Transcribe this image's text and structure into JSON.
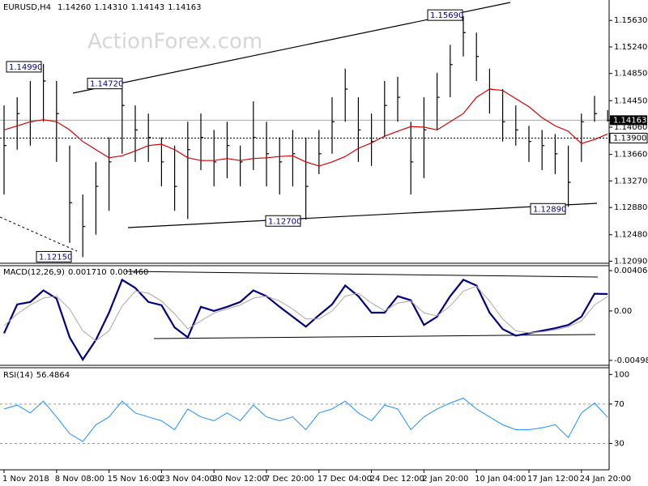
{
  "chart_data": [
    {
      "type": "ohlc",
      "title": "EURUSD,H4",
      "header": [
        "1.14260",
        "1.14310",
        "1.14143",
        "1.14163"
      ],
      "watermark": "ActionForex.com",
      "color": "#000000",
      "high": [
        1.1438,
        1.145,
        1.1474,
        1.1499,
        1.1474,
        1.1379,
        1.1307,
        1.1355,
        1.1391,
        1.1472,
        1.1438,
        1.1426,
        1.1391,
        1.1379,
        1.1414,
        1.1426,
        1.1402,
        1.1414,
        1.1379,
        1.1444,
        1.1414,
        1.1391,
        1.1402,
        1.1391,
        1.1402,
        1.145,
        1.1492,
        1.145,
        1.1426,
        1.1474,
        1.148,
        1.1414,
        1.145,
        1.1486,
        1.1527,
        1.1569,
        1.1545,
        1.1492,
        1.1462,
        1.1438,
        1.1408,
        1.1402,
        1.1396,
        1.1379,
        1.1426,
        1.1452,
        1.1431
      ],
      "low": [
        1.1307,
        1.1373,
        1.1379,
        1.1414,
        1.1355,
        1.1236,
        1.1215,
        1.1248,
        1.1283,
        1.1367,
        1.1355,
        1.1355,
        1.1319,
        1.1283,
        1.1271,
        1.1343,
        1.1319,
        1.1331,
        1.1319,
        1.1343,
        1.1319,
        1.1307,
        1.1319,
        1.127,
        1.1337,
        1.1367,
        1.1414,
        1.1355,
        1.1349,
        1.1391,
        1.1414,
        1.1307,
        1.1331,
        1.1402,
        1.145,
        1.151,
        1.1474,
        1.1426,
        1.1385,
        1.1379,
        1.1355,
        1.1343,
        1.1337,
        1.1289,
        1.1355,
        1.1414,
        1.14143
      ],
      "close": [
        1.1379,
        1.1426,
        1.1414,
        1.1474,
        1.1426,
        1.1295,
        1.126,
        1.1319,
        1.1355,
        1.1438,
        1.1402,
        1.1391,
        1.1355,
        1.1319,
        1.1373,
        1.1391,
        1.1355,
        1.1379,
        1.1355,
        1.1391,
        1.1367,
        1.1355,
        1.1367,
        1.1319,
        1.1367,
        1.1414,
        1.1462,
        1.1402,
        1.1385,
        1.1438,
        1.145,
        1.1355,
        1.1402,
        1.145,
        1.1498,
        1.1545,
        1.151,
        1.1462,
        1.1414,
        1.1402,
        1.1385,
        1.1379,
        1.1367,
        1.1325,
        1.1414,
        1.1426,
        1.14163
      ],
      "series": [
        {
          "color": "#d40000",
          "values": [
            1.1402,
            1.1408,
            1.1414,
            1.1417,
            1.1414,
            1.1402,
            1.1385,
            1.1373,
            1.1361,
            1.1364,
            1.1371,
            1.1379,
            1.1381,
            1.1373,
            1.1361,
            1.1357,
            1.1357,
            1.136,
            1.1357,
            1.136,
            1.1361,
            1.1363,
            1.1364,
            1.1355,
            1.1349,
            1.1355,
            1.1363,
            1.1375,
            1.1383,
            1.1393,
            1.14,
            1.1407,
            1.1406,
            1.1402,
            1.1414,
            1.1426,
            1.145,
            1.1462,
            1.146,
            1.1448,
            1.1436,
            1.142,
            1.1408,
            1.14,
            1.1382,
            1.1388,
            1.1396
          ]
        }
      ],
      "ylim": [
        1.1206,
        1.1593
      ],
      "yticks": [
        {
          "value": 1.1563,
          "label": "1.15630"
        },
        {
          "value": 1.1524,
          "label": "1.15240"
        },
        {
          "value": 1.1485,
          "label": "1.14850"
        },
        {
          "value": 1.1445,
          "label": "1.14450"
        },
        {
          "value": 1.1406,
          "label": "1.14060"
        },
        {
          "value": 1.1366,
          "label": "1.13660"
        },
        {
          "value": 1.1327,
          "label": "1.13270"
        },
        {
          "value": 1.1288,
          "label": "1.12880"
        },
        {
          "value": 1.1248,
          "label": "1.12480"
        },
        {
          "value": 1.1209,
          "label": "1.12090"
        }
      ],
      "annotations": [
        {
          "value": 1.1499,
          "label": "1.14990"
        },
        {
          "value": 1.1472,
          "label": "1.14720"
        },
        {
          "value": 1.1569,
          "label": "1.15690"
        },
        {
          "value": 1.1215,
          "label": "1.12150"
        },
        {
          "value": 1.127,
          "label": "1.12700"
        },
        {
          "value": 1.1289,
          "label": "1.12890"
        }
      ],
      "level": {
        "value": 1.139,
        "label": "1.13900"
      },
      "current_price": {
        "value": 1.14163,
        "label": "1.14163"
      }
    },
    {
      "type": "line",
      "title": "MACD(12,26,9)",
      "header": [
        "0.001710",
        "0.001460"
      ],
      "series": [
        {
          "color": "#000080",
          "values": [
            -0.00224,
            0.00066,
            0.00091,
            0.00208,
            0.00125,
            -0.00266,
            -0.0049,
            -0.00291,
            -0.00017,
            0.00315,
            0.00232,
            0.00091,
            0.00058,
            -0.00166,
            -0.00266,
            0.00042,
            0.0,
            0.00042,
            0.00091,
            0.00208,
            0.00149,
            0.00042,
            -0.00058,
            -0.00158,
            -0.00042,
            0.00066,
            0.00257,
            0.00149,
            -0.00017,
            -0.00017,
            0.00149,
            0.00108,
            -0.00141,
            -0.00058,
            0.00149,
            0.00315,
            0.00257,
            -0.00017,
            -0.00183,
            -0.00249,
            -0.00224,
            -0.00199,
            -0.00174,
            -0.00141,
            -0.00058,
            0.00174,
            0.00171
          ]
        },
        {
          "color": "#b4a4a4",
          "values": [
            -0.0015,
            -0.0003,
            0.0006,
            0.0013,
            0.0015,
            0.0002,
            -0.002,
            -0.003,
            -0.002,
            0.0005,
            0.002,
            0.0018,
            0.001,
            -0.0003,
            -0.0018,
            -0.001,
            -0.0002,
            0.0002,
            0.0006,
            0.0013,
            0.0015,
            0.001,
            0.0002,
            -0.0008,
            -0.0008,
            0.0,
            0.0015,
            0.0018,
            0.0008,
            0.0,
            0.0008,
            0.001,
            -0.0002,
            -0.0005,
            0.0005,
            0.002,
            0.0025,
            0.001,
            -0.0008,
            -0.002,
            -0.0022,
            -0.0021,
            -0.0019,
            -0.0016,
            -0.001,
            0.0006,
            0.00146
          ]
        }
      ],
      "ylim": [
        -0.005396,
        0.004567
      ],
      "yticks": [
        0.004069,
        {
          "value": 0,
          "label": "0.00"
        },
        -0.004981
      ]
    },
    {
      "type": "line",
      "title": "RSI(14)",
      "header": [
        "56.4864"
      ],
      "series": [
        {
          "color": "#1e90ff",
          "values": [
            65,
            69,
            61,
            73,
            57,
            40,
            32,
            49,
            57,
            73,
            61,
            57,
            53,
            44,
            65,
            57,
            53,
            61,
            53,
            69,
            57,
            53,
            57,
            44,
            61,
            65,
            73,
            61,
            53,
            69,
            65,
            44,
            57,
            65,
            71,
            76,
            65,
            57,
            49,
            44,
            44,
            46,
            49,
            36,
            61,
            71,
            56.4864
          ]
        }
      ],
      "ylim": [
        5,
        106
      ],
      "yticks": [
        100,
        70,
        30
      ],
      "levels": [
        70,
        30
      ],
      "categories": [
        "1 Nov 2018",
        null,
        null,
        null,
        "8 Nov 08:00",
        null,
        null,
        null,
        "15 Nov 16:00",
        null,
        null,
        null,
        "23 Nov 04:00",
        null,
        null,
        null,
        "30 Nov 12:00",
        null,
        null,
        null,
        "7 Dec 20:00",
        null,
        null,
        null,
        "17 Dec 04:00",
        null,
        null,
        null,
        "24 Dec 12:00",
        null,
        null,
        null,
        "2 Jan 20:00",
        null,
        null,
        null,
        "10 Jan 04:00",
        null,
        null,
        null,
        "17 Jan 12:00",
        null,
        null,
        null,
        "24 Jan 20:00",
        null,
        null
      ]
    }
  ]
}
